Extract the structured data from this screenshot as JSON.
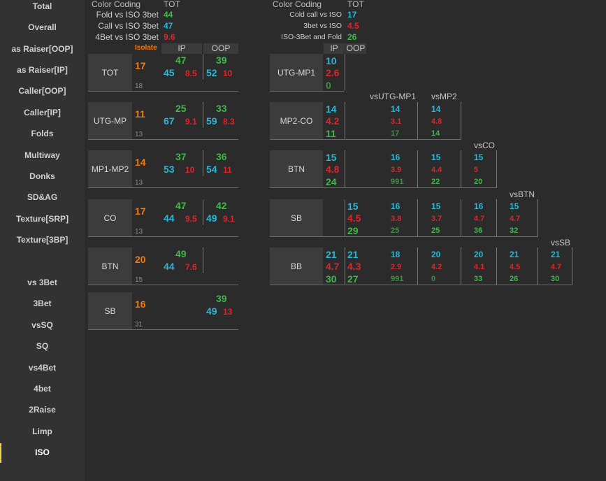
{
  "sidebar": {
    "items": [
      {
        "label": "Total"
      },
      {
        "label": "Overall"
      },
      {
        "label": "as Raiser[OOP]"
      },
      {
        "label": "as Raiser[IP]"
      },
      {
        "label": "Caller[OOP]"
      },
      {
        "label": "Caller[IP]"
      },
      {
        "label": "Folds"
      },
      {
        "label": "Multiway"
      },
      {
        "label": "Donks"
      },
      {
        "label": "SD&AG"
      },
      {
        "label": "Texture[SRP]"
      },
      {
        "label": "Texture[3BP]"
      },
      {
        "label": "vs 3Bet"
      },
      {
        "label": "3Bet"
      },
      {
        "label": "vsSQ"
      },
      {
        "label": "SQ"
      },
      {
        "label": "vs4Bet"
      },
      {
        "label": "4bet"
      },
      {
        "label": "2Raise"
      },
      {
        "label": "Limp"
      },
      {
        "label": "ISO"
      }
    ],
    "active": "ISO",
    "accent": "#e8d44d"
  },
  "colors": {
    "green": "#41b64b",
    "cyan": "#29b7d6",
    "red": "#e0242b",
    "orange": "#f07c12",
    "background": "#2b2b2b"
  },
  "left": {
    "legend": {
      "title": "Color Coding",
      "tot": "TOT",
      "rows": [
        {
          "label": "Fold vs ISO 3bet",
          "value": "44"
        },
        {
          "label": "Call vs ISO 3bet",
          "value": "47"
        },
        {
          "label": "4Bet vs ISO 3bet",
          "value": "9.6"
        }
      ]
    },
    "headers": {
      "isolate": "Isolate",
      "ip": "IP",
      "oop": "OOP"
    },
    "rows": [
      {
        "pos": "TOT",
        "iso": "17",
        "sample": "18",
        "ip": {
          "g": "47",
          "c": "45",
          "r": "8.5"
        },
        "oop": {
          "g": "39",
          "c": "52",
          "r": "10"
        }
      },
      {
        "pos": "UTG-MP",
        "iso": "11",
        "sample": "13",
        "ip": {
          "g": "25",
          "c": "67",
          "r": "9.1"
        },
        "oop": {
          "g": "33",
          "c": "59",
          "r": "8.3"
        }
      },
      {
        "pos": "MP1-MP2",
        "iso": "14",
        "sample": "13",
        "ip": {
          "g": "37",
          "c": "53",
          "r": "10"
        },
        "oop": {
          "g": "36",
          "c": "54",
          "r": "11"
        }
      },
      {
        "pos": "CO",
        "iso": "17",
        "sample": "13",
        "ip": {
          "g": "47",
          "c": "44",
          "r": "9.5"
        },
        "oop": {
          "g": "42",
          "c": "49",
          "r": "9.1"
        }
      },
      {
        "pos": "BTN",
        "iso": "20",
        "sample": "15",
        "ip": {
          "g": "49",
          "c": "44",
          "r": "7.6"
        },
        "oop": null
      },
      {
        "pos": "SB",
        "iso": "16",
        "sample": "31",
        "ip": null,
        "oop": {
          "g": "39",
          "c": "49",
          "r": "13"
        }
      }
    ]
  },
  "right": {
    "legend": {
      "title": "Color Coding",
      "tot": "TOT",
      "rows": [
        {
          "label": "Cold call vs ISO",
          "value": "17"
        },
        {
          "label": "3bet vs ISO",
          "value": "4.5"
        },
        {
          "label": "ISO-3Bet and Fold",
          "value": "26"
        }
      ]
    },
    "headers": {
      "ip": "IP",
      "oop": "OOP"
    },
    "vs_labels": [
      "vsUTG-MP1",
      "vsMP2",
      "vsCO",
      "vsBTN",
      "vsSB"
    ],
    "rows": [
      {
        "pos": "UTG-MP1",
        "ip": {
          "c": "10",
          "r": "2.6",
          "g": "0"
        },
        "oop": null,
        "vs": []
      },
      {
        "pos": "MP2-CO",
        "ip": {
          "c": "14",
          "r": "4.2",
          "g": "11"
        },
        "oop": null,
        "vs": [
          {
            "c": "14",
            "r": "3.1",
            "g": "17"
          },
          {
            "c": "14",
            "r": "4.8",
            "g": "14"
          }
        ]
      },
      {
        "pos": "BTN",
        "ip": {
          "c": "15",
          "r": "4.8",
          "g": "24"
        },
        "oop": null,
        "vs": [
          {
            "c": "16",
            "r": "3.9",
            "g": "991"
          },
          {
            "c": "15",
            "r": "4.4",
            "g": "22"
          },
          {
            "c": "15",
            "r": "5",
            "g": "20"
          }
        ]
      },
      {
        "pos": "SB",
        "ip": null,
        "oop": {
          "c": "15",
          "r": "4.5",
          "g": "29"
        },
        "vs": [
          {
            "c": "16",
            "r": "3.8",
            "g": "25"
          },
          {
            "c": "15",
            "r": "3.7",
            "g": "25"
          },
          {
            "c": "16",
            "r": "4.7",
            "g": "36"
          },
          {
            "c": "15",
            "r": "4.7",
            "g": "32"
          }
        ]
      },
      {
        "pos": "BB",
        "ip": {
          "c": "21",
          "r": "4.7",
          "g": "30"
        },
        "oop": {
          "c": "21",
          "r": "4.3",
          "g": "27"
        },
        "vs": [
          {
            "c": "18",
            "r": "2.9",
            "g": "991"
          },
          {
            "c": "20",
            "r": "4.2",
            "g": "0"
          },
          {
            "c": "20",
            "r": "4.1",
            "g": "33"
          },
          {
            "c": "21",
            "r": "4.5",
            "g": "26"
          },
          {
            "c": "21",
            "r": "4.7",
            "g": "30"
          }
        ]
      }
    ]
  }
}
